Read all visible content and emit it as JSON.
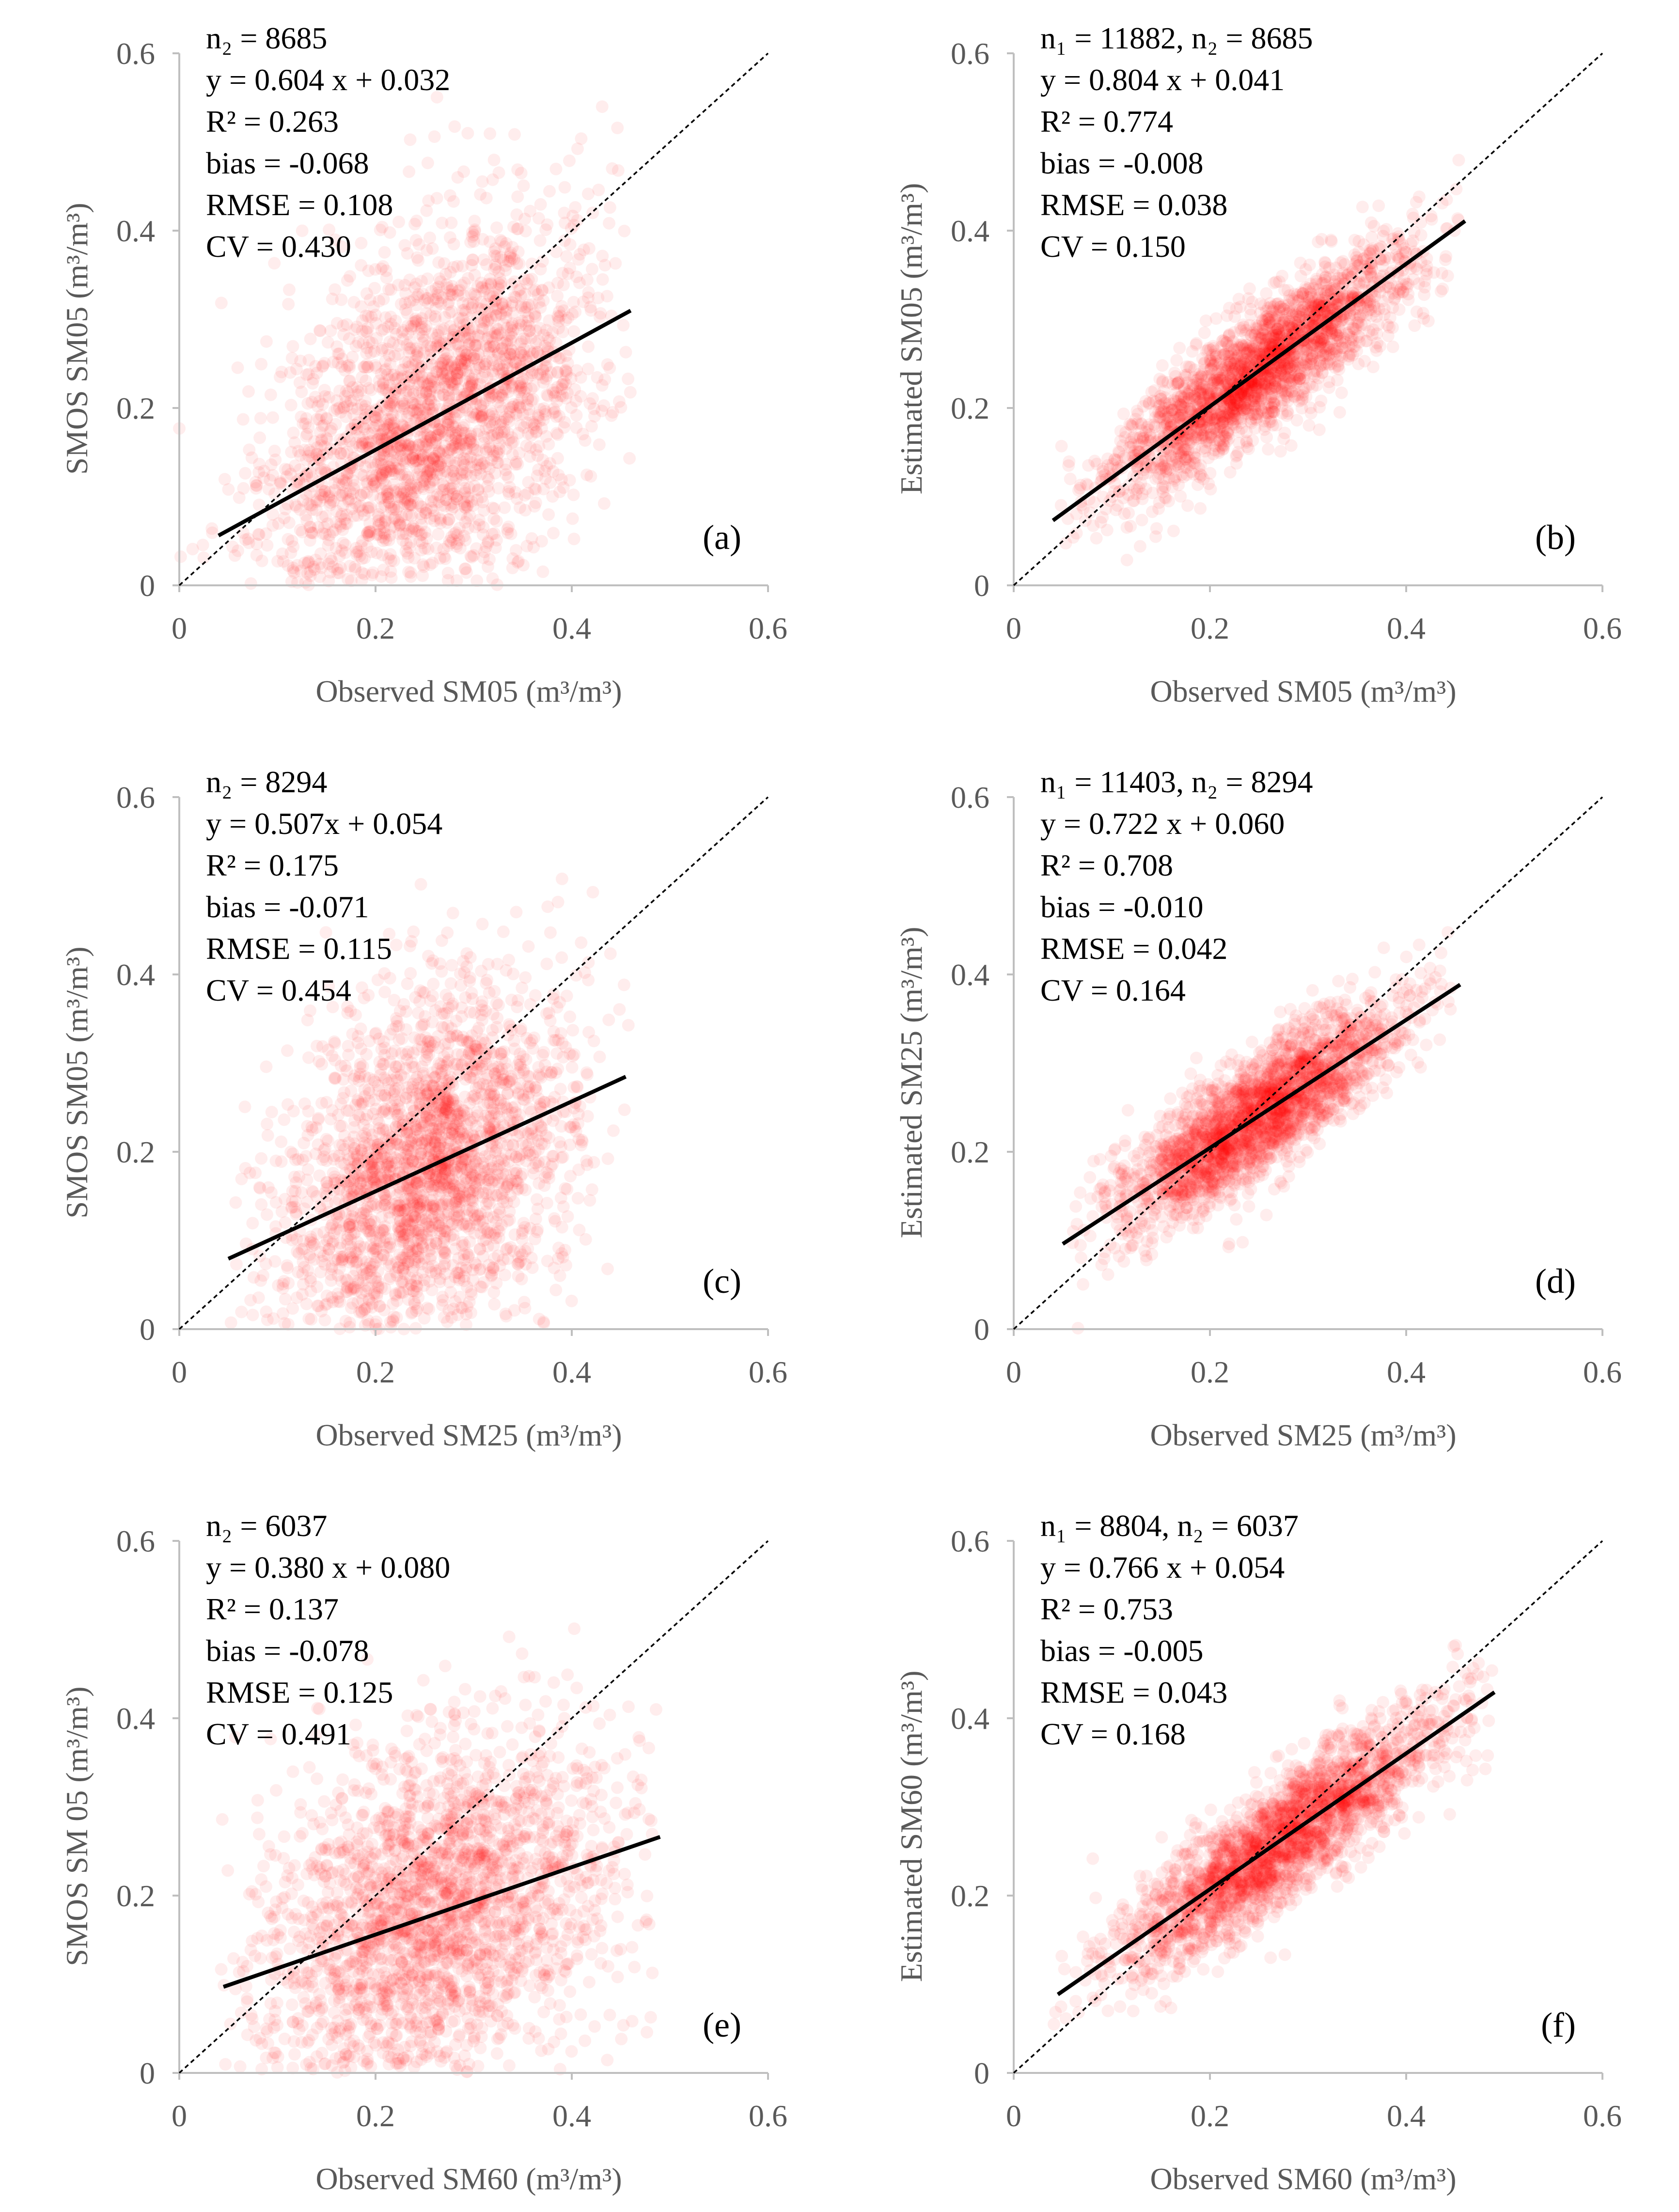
{
  "chart_data": [
    {
      "id": "a",
      "type": "scatter",
      "panel_label": "(a)",
      "xlabel": "Observed SM05 (m³/m³)",
      "ylabel": "SMOS SM05 (m³/m³)",
      "xlim": [
        0,
        0.6
      ],
      "ylim": [
        0,
        0.6
      ],
      "xticks": [
        "0",
        "0.2",
        "0.4",
        "0.6"
      ],
      "yticks": [
        "0",
        "0.2",
        "0.4",
        "0.6"
      ],
      "stats": [
        "n₂ = 8685",
        "y = 0.604 x + 0.032",
        "R² = 0.263",
        "bias = -0.068",
        "RMSE = 0.108",
        "CV = 0.430"
      ],
      "regression": {
        "slope": 0.604,
        "intercept": 0.032,
        "x_range": [
          0.04,
          0.46
        ]
      },
      "one_to_one": true,
      "point_color": "#ff0000",
      "cloud": {
        "x_center": 0.26,
        "x_spread": 0.085,
        "y_spread": 0.1,
        "x_range": [
          0.0,
          0.46
        ]
      }
    },
    {
      "id": "b",
      "type": "scatter",
      "panel_label": "(b)",
      "xlabel": "Observed SM05 (m³/m³)",
      "ylabel": "Estimated SM05 (m³/m³)",
      "xlim": [
        0,
        0.6
      ],
      "ylim": [
        0,
        0.6
      ],
      "xticks": [
        "0",
        "0.2",
        "0.4",
        "0.6"
      ],
      "yticks": [
        "0",
        "0.2",
        "0.4",
        "0.6"
      ],
      "stats": [
        "n₁ = 11882, n₂ = 8685",
        "y = 0.804 x + 0.041",
        "R² = 0.774",
        "bias = -0.008",
        "RMSE = 0.038",
        "CV = 0.150"
      ],
      "regression": {
        "slope": 0.804,
        "intercept": 0.041,
        "x_range": [
          0.04,
          0.46
        ]
      },
      "one_to_one": true,
      "point_color": "#ff0000",
      "cloud": {
        "x_center": 0.25,
        "x_spread": 0.075,
        "y_spread": 0.035,
        "x_range": [
          0.04,
          0.46
        ]
      }
    },
    {
      "id": "c",
      "type": "scatter",
      "panel_label": "(c)",
      "xlabel": "Observed SM25 (m³/m³)",
      "ylabel": "SMOS SM05 (m³/m³)",
      "xlim": [
        0,
        0.6
      ],
      "ylim": [
        0,
        0.6
      ],
      "xticks": [
        "0",
        "0.2",
        "0.4",
        "0.6"
      ],
      "yticks": [
        "0",
        "0.2",
        "0.4",
        "0.6"
      ],
      "stats": [
        "n₂ = 8294",
        "y = 0.507x + 0.054",
        "R² = 0.175",
        "bias = -0.071",
        "RMSE = 0.115",
        "CV = 0.454"
      ],
      "regression": {
        "slope": 0.507,
        "intercept": 0.054,
        "x_range": [
          0.05,
          0.455
        ]
      },
      "one_to_one": true,
      "point_color": "#ff0000",
      "cloud": {
        "x_center": 0.25,
        "x_spread": 0.075,
        "y_spread": 0.1,
        "x_range": [
          0.05,
          0.46
        ]
      }
    },
    {
      "id": "d",
      "type": "scatter",
      "panel_label": "(d)",
      "xlabel": "Observed SM25 (m³/m³)",
      "ylabel": "Estimated SM25 (m³/m³)",
      "xlim": [
        0,
        0.6
      ],
      "ylim": [
        0,
        0.6
      ],
      "xticks": [
        "0",
        "0.2",
        "0.4",
        "0.6"
      ],
      "yticks": [
        "0",
        "0.2",
        "0.4",
        "0.6"
      ],
      "stats": [
        "n₁ = 11403, n₂ = 8294",
        "y = 0.722 x + 0.060",
        "R² = 0.708",
        "bias = -0.010",
        "RMSE = 0.042",
        "CV = 0.164"
      ],
      "regression": {
        "slope": 0.722,
        "intercept": 0.06,
        "x_range": [
          0.05,
          0.455
        ]
      },
      "one_to_one": true,
      "point_color": "#ff0000",
      "cloud": {
        "x_center": 0.25,
        "x_spread": 0.07,
        "y_spread": 0.035,
        "x_range": [
          0.05,
          0.46
        ]
      }
    },
    {
      "id": "e",
      "type": "scatter",
      "panel_label": "(e)",
      "xlabel": "Observed SM60 (m³/m³)",
      "ylabel": "SMOS SM 05 (m³/m³)",
      "xlim": [
        0,
        0.6
      ],
      "ylim": [
        0,
        0.6
      ],
      "xticks": [
        "0",
        "0.2",
        "0.4",
        "0.6"
      ],
      "yticks": [
        "0",
        "0.2",
        "0.4",
        "0.6"
      ],
      "stats": [
        "n₂ = 6037",
        "y = 0.380 x + 0.080",
        "R² = 0.137",
        "bias = -0.078",
        "RMSE = 0.125",
        "CV = 0.491"
      ],
      "regression": {
        "slope": 0.38,
        "intercept": 0.08,
        "x_range": [
          0.045,
          0.49
        ]
      },
      "one_to_one": true,
      "point_color": "#ff0000",
      "cloud": {
        "x_center": 0.26,
        "x_spread": 0.09,
        "y_spread": 0.1,
        "x_range": [
          0.04,
          0.49
        ]
      }
    },
    {
      "id": "f",
      "type": "scatter",
      "panel_label": "(f)",
      "xlabel": "Observed SM60 (m³/m³)",
      "ylabel": "Estimated SM60 (m³/m³)",
      "xlim": [
        0,
        0.6
      ],
      "ylim": [
        0,
        0.6
      ],
      "xticks": [
        "0",
        "0.2",
        "0.4",
        "0.6"
      ],
      "yticks": [
        "0",
        "0.2",
        "0.4",
        "0.6"
      ],
      "stats": [
        "n₁ = 8804, n₂ = 6037",
        "y = 0.766 x + 0.054",
        "R² = 0.753",
        "bias = -0.005",
        "RMSE = 0.043",
        "CV = 0.168"
      ],
      "regression": {
        "slope": 0.766,
        "intercept": 0.054,
        "x_range": [
          0.045,
          0.49
        ]
      },
      "one_to_one": true,
      "point_color": "#ff0000",
      "cloud": {
        "x_center": 0.27,
        "x_spread": 0.085,
        "y_spread": 0.035,
        "x_range": [
          0.04,
          0.49
        ]
      }
    }
  ]
}
